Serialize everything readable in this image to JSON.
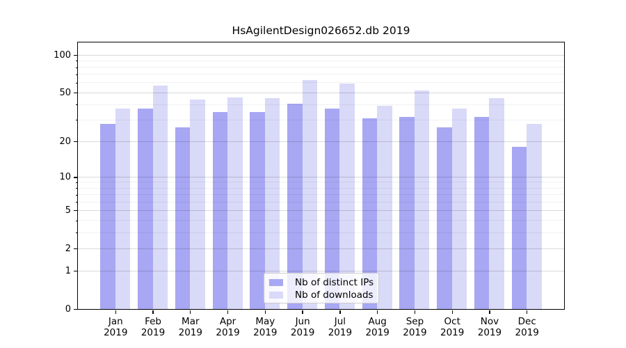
{
  "chart_data": {
    "type": "bar",
    "title": "HsAgilentDesign026652.db 2019",
    "categories": [
      "Jan 2019",
      "Feb 2019",
      "Mar 2019",
      "Apr 2019",
      "May 2019",
      "Jun 2019",
      "Jul 2019",
      "Aug 2019",
      "Sep 2019",
      "Oct 2019",
      "Nov 2019",
      "Dec 2019"
    ],
    "series": [
      {
        "name": "Nb of distinct IPs",
        "color": "#a7a7f3",
        "values": [
          28,
          37,
          26,
          35,
          35,
          41,
          37,
          31,
          32,
          26,
          32,
          18
        ]
      },
      {
        "name": "Nb of downloads",
        "color": "#d9d9f8",
        "values": [
          37,
          57,
          44,
          46,
          45,
          63,
          59,
          39,
          52,
          37,
          45,
          28
        ]
      }
    ],
    "yscale": "log1p",
    "yticks": [
      0,
      1,
      2,
      5,
      10,
      20,
      50,
      100
    ],
    "yticks_minor": [
      3,
      4,
      6,
      7,
      8,
      9,
      30,
      40,
      60,
      70,
      80,
      90
    ],
    "ylim": [
      0,
      126
    ],
    "xlabel": "",
    "ylabel": "",
    "grid": true,
    "legend_position": "lower center"
  },
  "colors": {
    "axis": "#000000",
    "grid_major": "rgba(0,0,0,0.15)",
    "grid_minor": "rgba(0,0,0,0.055)",
    "legend_border": "#cccccc",
    "legend_background": "rgba(255,255,255,0.8)"
  }
}
